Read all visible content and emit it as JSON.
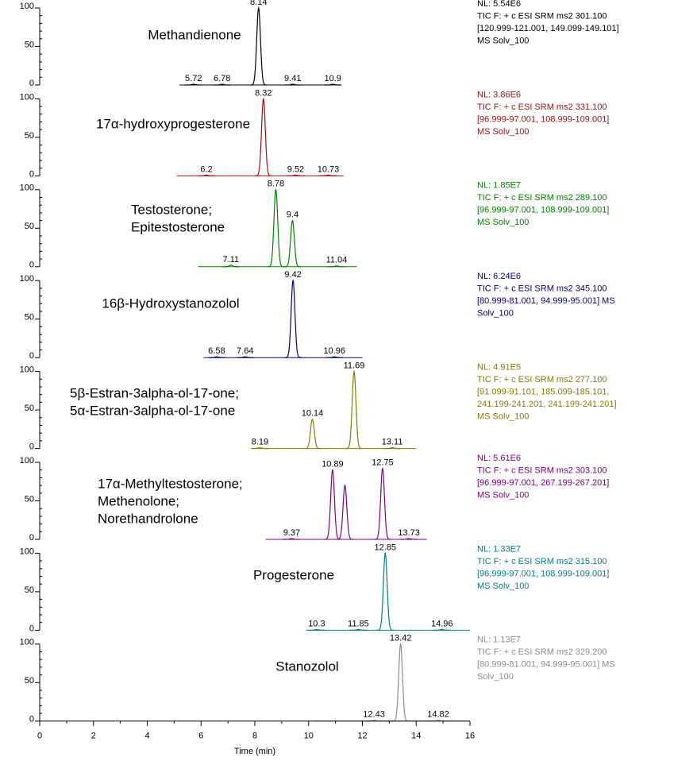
{
  "chart_data": {
    "type": "line",
    "x_label": "Time (min)",
    "xlim": [
      0,
      16
    ],
    "xticks": [
      0,
      2,
      4,
      6,
      8,
      10,
      12,
      14,
      16
    ],
    "xminorticks": [
      1,
      3,
      5,
      7,
      9,
      11,
      13,
      15
    ],
    "ylim": [
      0,
      100
    ],
    "yticks": [
      0,
      50,
      100
    ],
    "yminorticks": [
      10,
      20,
      30,
      40,
      60,
      70,
      80,
      90
    ],
    "series": [
      {
        "name_lines": [
          "Methandienone"
        ],
        "color": "#000000",
        "nl_color": "#000000",
        "info": [
          "NL: 5.54E6",
          "TIC F: + c ESI SRM ms2 301.100",
          "[120.999-121.001, 149.099-149.101]",
          "MS Solv_100"
        ],
        "range": [
          5.2,
          11.0
        ],
        "peaks": [
          {
            "rt": 5.72,
            "height": 1
          },
          {
            "rt": 6.78,
            "height": 1
          },
          {
            "rt": 8.14,
            "height": 100
          },
          {
            "rt": 9.41,
            "height": 1
          },
          {
            "rt": 10.9,
            "height": 1
          }
        ]
      },
      {
        "name_lines": [
          "17α-hydroxyprogesterone"
        ],
        "color": "#a01010",
        "nl_color": "#a01010",
        "info": [
          "NL: 3.86E6",
          "TIC F: + c ESI SRM ms2 331.100",
          "[96.999-97.001, 108.999-109.001]",
          "MS Solv_100"
        ],
        "range": [
          5.1,
          11.3
        ],
        "peaks": [
          {
            "rt": 6.2,
            "height": 1
          },
          {
            "rt": 8.32,
            "height": 100
          },
          {
            "rt": 9.52,
            "height": 1
          },
          {
            "rt": 10.73,
            "height": 1
          }
        ]
      },
      {
        "name_lines": [
          "Testosterone;",
          "Epitestosterone"
        ],
        "color": "#008000",
        "nl_color": "#008000",
        "info": [
          "NL: 1.85E7",
          "TIC F: + c ESI SRM ms2 289.100",
          "[96.999-97.001, 108.999-109.001]",
          "MS Solv_100"
        ],
        "range": [
          5.9,
          11.8
        ],
        "peaks": [
          {
            "rt": 7.11,
            "height": 2
          },
          {
            "rt": 8.78,
            "height": 100
          },
          {
            "rt": 9.4,
            "height": 60
          },
          {
            "rt": 11.04,
            "height": 1
          }
        ]
      },
      {
        "name_lines": [
          "16β-Hydroxystanozolol"
        ],
        "color": "#000080",
        "nl_color": "#000080",
        "info": [
          "NL: 6.24E6",
          "TIC F: + c ESI SRM ms2 345.100",
          "[80.999-81.001, 94.999-95.001]  MS",
          "Solv_100"
        ],
        "range": [
          6.1,
          12.0
        ],
        "peaks": [
          {
            "rt": 6.58,
            "height": 1
          },
          {
            "rt": 7.64,
            "height": 1
          },
          {
            "rt": 9.42,
            "height": 100
          },
          {
            "rt": 10.96,
            "height": 1
          }
        ]
      },
      {
        "name_lines": [
          "5β-Estran-3alpha-ol-17-one;",
          "5α-Estran-3alpha-ol-17-one"
        ],
        "color": "#808000",
        "nl_color": "#808000",
        "info": [
          "NL: 4.91E5",
          "TIC F: + c ESI SRM ms2 277.100",
          "[91.099-91.101, 185.099-185.101,",
          "241.199-241.201, 241.199-241.201]",
          "MS Solv_100"
        ],
        "range": [
          8.0,
          14.0
        ],
        "peaks": [
          {
            "rt": 8.19,
            "height": 1
          },
          {
            "rt": 10.14,
            "height": 38
          },
          {
            "rt": 11.69,
            "height": 100
          },
          {
            "rt": 13.11,
            "height": 1
          }
        ]
      },
      {
        "name_lines": [
          "17α-Methyltestosterone;",
          "Methenolone;",
          "Norethandrolone"
        ],
        "color": "#800080",
        "nl_color": "#800080",
        "info": [
          "NL: 5.61E6",
          "TIC F: + c ESI SRM ms2 303.100",
          "[96.999-97.001, 267.199-267.201]",
          "MS Solv_100"
        ],
        "range": [
          8.4,
          14.4
        ],
        "peaks": [
          {
            "rt": 9.37,
            "height": 1
          },
          {
            "rt": 10.89,
            "height": 90
          },
          {
            "x": 11.35,
            "height": 70
          },
          {
            "rt": 12.75,
            "height": 92
          },
          {
            "rt": 13.73,
            "height": 1
          }
        ]
      },
      {
        "name_lines": [
          "Progesterone"
        ],
        "color": "#008080",
        "nl_color": "#008080",
        "info": [
          "NL: 1.33E7",
          "TIC F: + c ESI SRM ms2 315.100",
          "[96.999-97.001, 108.999-109.001]",
          "MS Solv_100"
        ],
        "range": [
          9.9,
          16.0
        ],
        "peaks": [
          {
            "rt": 10.3,
            "height": 1
          },
          {
            "rt": 11.85,
            "height": 1
          },
          {
            "rt": 12.85,
            "height": 100
          },
          {
            "rt": 14.96,
            "height": 1
          }
        ]
      },
      {
        "name_lines": [
          "Stanozolol"
        ],
        "color": "#8c8c8c",
        "nl_color": "#8c8c8c",
        "info": [
          "NL: 1.13E7",
          "TIC F: + c ESI SRM ms2 329.200",
          "[80.999-81.001, 94.999-95.001]  MS",
          "Solv_100"
        ],
        "range": [
          10.2,
          16.0
        ],
        "peaks": [
          {
            "rt": 12.43,
            "height": 1
          },
          {
            "rt": 13.42,
            "height": 100
          },
          {
            "rt": 14.82,
            "height": 1
          }
        ]
      }
    ]
  }
}
